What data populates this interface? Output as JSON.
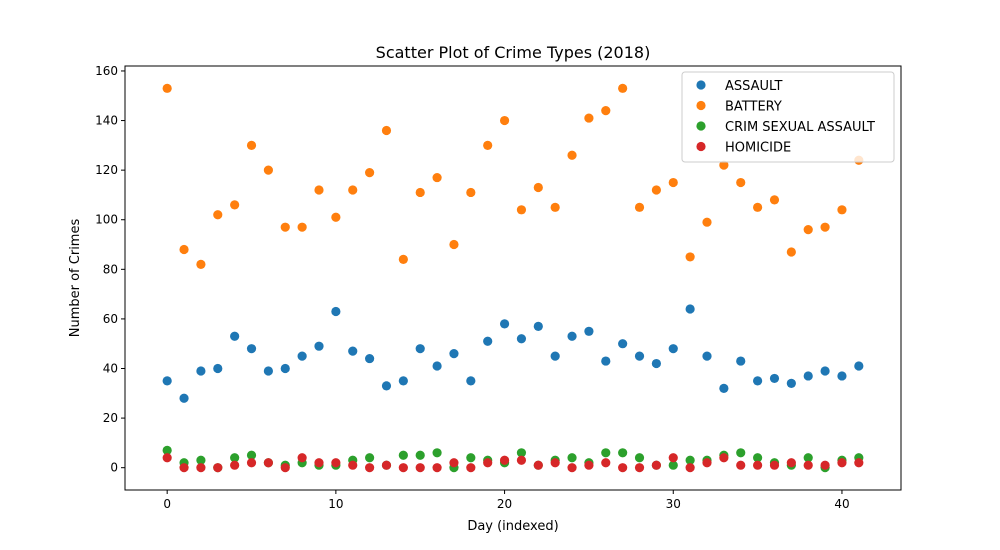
{
  "chart_data": {
    "type": "scatter",
    "title": "Scatter Plot of Crime Types (2018)",
    "xlabel": "Day (indexed)",
    "ylabel": "Number of Crimes",
    "xlim": [
      -2.5,
      43.5
    ],
    "ylim": [
      -9,
      162
    ],
    "xticks": [
      0,
      10,
      20,
      30,
      40
    ],
    "yticks": [
      0,
      20,
      40,
      60,
      80,
      100,
      120,
      140,
      160
    ],
    "grid": false,
    "legend_position": "top-right",
    "x": [
      0,
      1,
      2,
      3,
      4,
      5,
      6,
      7,
      8,
      9,
      10,
      11,
      12,
      13,
      14,
      15,
      16,
      17,
      18,
      19,
      20,
      21,
      22,
      23,
      24,
      25,
      26,
      27,
      28,
      29,
      30,
      31,
      32,
      33,
      34,
      35,
      36,
      37,
      38,
      39,
      40,
      41
    ],
    "series": [
      {
        "name": "ASSAULT",
        "color": "#1f77b4",
        "values": [
          35,
          28,
          39,
          40,
          53,
          48,
          39,
          40,
          45,
          49,
          63,
          47,
          44,
          33,
          35,
          48,
          41,
          46,
          35,
          51,
          58,
          52,
          57,
          45,
          53,
          55,
          43,
          50,
          45,
          42,
          48,
          64,
          45,
          32,
          43,
          35,
          36,
          34,
          37,
          39,
          37,
          41
        ]
      },
      {
        "name": "BATTERY",
        "color": "#ff7f0e",
        "values": [
          153,
          88,
          82,
          102,
          106,
          130,
          120,
          97,
          97,
          112,
          101,
          112,
          119,
          136,
          84,
          111,
          117,
          90,
          111,
          130,
          140,
          104,
          113,
          105,
          126,
          141,
          144,
          153,
          105,
          112,
          115,
          85,
          99,
          122,
          115,
          105,
          108,
          87,
          96,
          97,
          104,
          124
        ]
      },
      {
        "name": "CRIM SEXUAL ASSAULT",
        "color": "#2ca02c",
        "values": [
          7,
          2,
          3,
          0,
          4,
          5,
          2,
          1,
          2,
          1,
          1,
          3,
          4,
          1,
          5,
          5,
          6,
          0,
          4,
          3,
          2,
          6,
          1,
          3,
          4,
          2,
          6,
          6,
          4,
          1,
          1,
          3,
          3,
          5,
          6,
          4,
          2,
          1,
          4,
          0,
          3,
          4
        ]
      },
      {
        "name": "HOMICIDE",
        "color": "#d62728",
        "values": [
          4,
          0,
          0,
          0,
          1,
          2,
          2,
          0,
          4,
          2,
          2,
          1,
          0,
          1,
          0,
          0,
          0,
          2,
          0,
          2,
          3,
          3,
          1,
          2,
          0,
          1,
          2,
          0,
          0,
          1,
          4,
          0,
          2,
          4,
          1,
          1,
          1,
          2,
          1,
          1,
          2,
          2
        ]
      }
    ]
  }
}
